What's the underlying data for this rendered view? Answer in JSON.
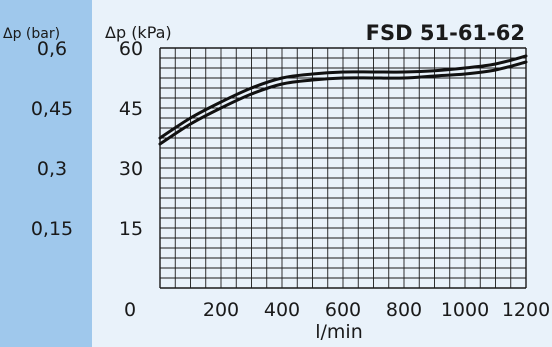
{
  "chart_data": {
    "type": "line",
    "title": "FSD 51-61-62",
    "xlabel": "l/min",
    "ylabel_left": "Δp (bar)",
    "ylabel_right": "Δp (kPa)",
    "xlim": [
      0,
      1200
    ],
    "ylim": [
      0,
      60
    ],
    "x_ticks": [
      {
        "value": 0,
        "label": "0"
      },
      {
        "value": 200,
        "label": "200"
      },
      {
        "value": 400,
        "label": "400"
      },
      {
        "value": 600,
        "label": "600"
      },
      {
        "value": 800,
        "label": "800"
      },
      {
        "value": 1000,
        "label": "1000"
      },
      {
        "value": 1200,
        "label": "1200"
      }
    ],
    "y_ticks_kpa": [
      {
        "value": 60,
        "label": "60"
      },
      {
        "value": 45,
        "label": "45"
      },
      {
        "value": 30,
        "label": "30"
      },
      {
        "value": 15,
        "label": "15"
      }
    ],
    "y_ticks_bar": [
      {
        "value": 60,
        "label": "0,6"
      },
      {
        "value": 45,
        "label": "0,45"
      },
      {
        "value": 30,
        "label": "0,3"
      },
      {
        "value": 15,
        "label": "0,15"
      }
    ],
    "grid": true,
    "grid_minor_x": 50,
    "grid_minor_y": 2.5,
    "series": [
      {
        "x": [
          0,
          100,
          200,
          300,
          400,
          500,
          600,
          700,
          800,
          900,
          1000,
          1100,
          1200
        ],
        "y": [
          37.5,
          42.5,
          46.5,
          50,
          52.5,
          53.5,
          54,
          54,
          54,
          54.3,
          55,
          56,
          58
        ]
      },
      {
        "x": [
          0,
          100,
          200,
          300,
          400,
          500,
          600,
          700,
          800,
          900,
          1000,
          1100,
          1200
        ],
        "y": [
          36,
          41,
          45,
          48.5,
          51,
          52,
          52.5,
          52.5,
          52.5,
          53,
          53.5,
          54.5,
          56.5
        ]
      }
    ]
  },
  "colors": {
    "band": "#9fc8ec",
    "panel": "#e9f2fa",
    "grid": "#1a1a1a",
    "line": "#111111"
  }
}
